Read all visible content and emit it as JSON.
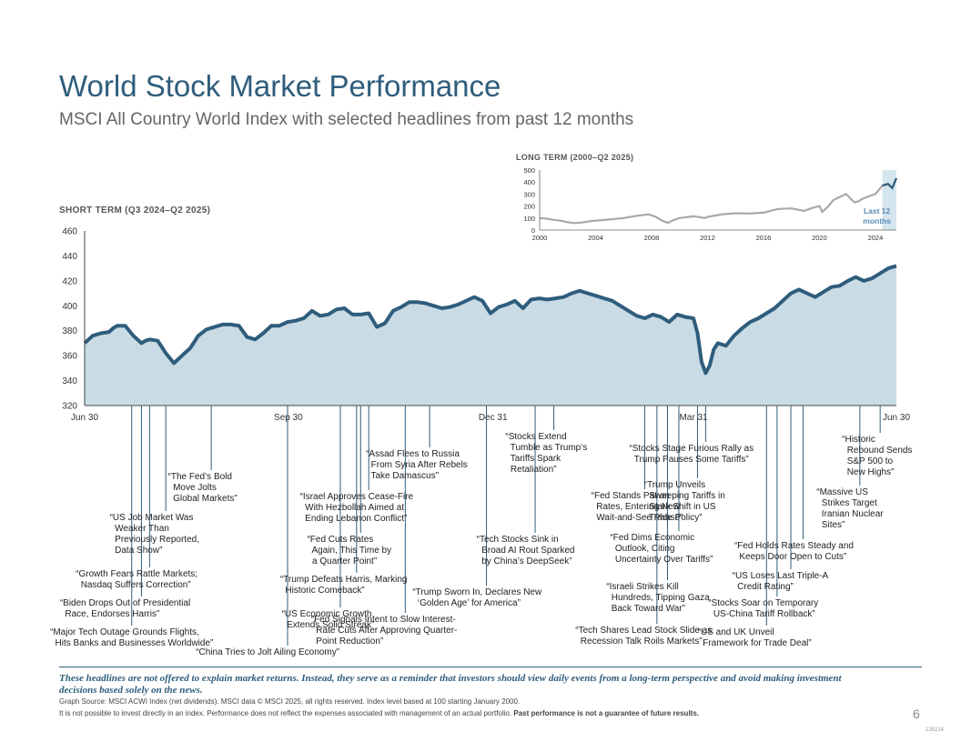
{
  "header": {
    "title": "World Stock Market Performance",
    "subtitle": "MSCI All Country World Index with selected headlines from past 12 months"
  },
  "labels": {
    "short_term": "SHORT TERM (Q3 2024–Q2 2025)",
    "long_term": "LONG TERM (2000–Q2 2025)"
  },
  "colors": {
    "line": "#2f5d7c",
    "fill": "#c9dbe5",
    "title": "#2f5d7c",
    "highlight": "#d6e6ef"
  },
  "chart_data": [
    {
      "type": "area",
      "name": "short-term",
      "title": "SHORT TERM (Q3 2024–Q2 2025)",
      "xlabel": "",
      "ylabel": "",
      "ylim": [
        320,
        460
      ],
      "yticks": [
        320,
        340,
        360,
        380,
        400,
        420,
        440,
        460
      ],
      "xlim": [
        0,
        100
      ],
      "xtick_labels": [
        {
          "x": 0,
          "label": "Jun 30"
        },
        {
          "x": 25.1,
          "label": "Sep 30"
        },
        {
          "x": 50.3,
          "label": "Dec 31"
        },
        {
          "x": 75.0,
          "label": "Mar 31"
        },
        {
          "x": 100,
          "label": "Jun 30"
        }
      ],
      "series": [
        {
          "name": "MSCI ACWI",
          "x": [
            0,
            1,
            2,
            3,
            3.5,
            4,
            5,
            6,
            7,
            7.5,
            8,
            9,
            10,
            11,
            12,
            13,
            14,
            15,
            16,
            17,
            18,
            19,
            20,
            21,
            22,
            23,
            24,
            25,
            26,
            27,
            28,
            29,
            30,
            31,
            32,
            33,
            34,
            35,
            36,
            37,
            38,
            39,
            40,
            41,
            42,
            43,
            44,
            45,
            46,
            47,
            48,
            49,
            50,
            51,
            52,
            53,
            54,
            55,
            56,
            57,
            58,
            59,
            60,
            61,
            62,
            63,
            64,
            65,
            66,
            67,
            68,
            69,
            70,
            71,
            72,
            73,
            74,
            75,
            75.5,
            76,
            76.5,
            77,
            77.5,
            78,
            79,
            80,
            81,
            82,
            83,
            84,
            85,
            86,
            87,
            88,
            89,
            90,
            91,
            92,
            93,
            94,
            95,
            96,
            97,
            98,
            99,
            100
          ],
          "values": [
            370,
            376,
            378,
            379,
            382,
            384,
            384,
            376,
            370,
            372,
            373,
            372,
            362,
            354,
            360,
            366,
            376,
            381,
            383,
            385,
            385,
            384,
            375,
            373,
            378,
            384,
            384,
            387,
            388,
            390,
            396,
            392,
            393,
            397,
            398,
            393,
            393,
            394,
            383,
            386,
            396,
            399,
            403,
            403,
            402,
            400,
            398,
            399,
            401,
            404,
            407,
            404,
            394,
            399,
            401,
            404,
            398,
            405,
            406,
            405,
            406,
            407,
            410,
            412,
            410,
            408,
            406,
            404,
            400,
            396,
            392,
            390,
            393,
            391,
            387,
            393,
            391,
            390,
            378,
            355,
            346,
            352,
            365,
            370,
            368,
            376,
            382,
            387,
            390,
            394,
            398,
            404,
            410,
            413,
            410,
            407,
            411,
            415,
            416,
            420,
            423,
            420,
            422,
            426,
            430,
            432
          ]
        }
      ]
    },
    {
      "type": "line",
      "name": "long-term",
      "title": "LONG TERM (2000–Q2 2025)",
      "xlabel": "",
      "ylabel": "",
      "ylim": [
        0,
        500
      ],
      "yticks": [
        0,
        100,
        200,
        300,
        400,
        500
      ],
      "xlim": [
        2000,
        2025.5
      ],
      "xticks": [
        2000,
        2004,
        2008,
        2012,
        2016,
        2020,
        2024
      ],
      "highlight": {
        "from": 2024.5,
        "to": 2025.5,
        "label": "Last 12 months"
      },
      "series": [
        {
          "name": "MSCI ACWI",
          "x": [
            2000,
            2000.5,
            2001,
            2001.5,
            2002,
            2002.5,
            2003,
            2003.5,
            2004,
            2005,
            2006,
            2007,
            2007.8,
            2008.3,
            2008.8,
            2009.2,
            2009.5,
            2010,
            2011,
            2011.8,
            2012,
            2013,
            2014,
            2015,
            2016,
            2017,
            2018,
            2018.9,
            2019.5,
            2020,
            2020.2,
            2020.6,
            2021,
            2021.9,
            2022.5,
            2022.8,
            2023,
            2023.5,
            2024,
            2024.5,
            2024.9,
            2025.2,
            2025.5
          ],
          "values": [
            100,
            95,
            85,
            78,
            65,
            58,
            62,
            72,
            78,
            88,
            100,
            120,
            130,
            110,
            75,
            60,
            80,
            100,
            115,
            100,
            110,
            130,
            140,
            138,
            145,
            175,
            180,
            160,
            185,
            200,
            150,
            195,
            250,
            300,
            230,
            240,
            255,
            280,
            300,
            370,
            385,
            350,
            432
          ]
        }
      ]
    }
  ],
  "headlines": [
    {
      "x": 5.8,
      "row": "r1",
      "text": "“Major Tech Outage Grounds Flights,\n  Hits Banks and Businesses Worldwide”"
    },
    {
      "x": 7.0,
      "row": "r3",
      "text": "“Biden Drops Out of Presidential\n  Race, Endorses Harris”"
    },
    {
      "x": 8.0,
      "row": "r5",
      "text": "“Growth Fears Rattle Markets;\n  Nasdaq Suffers Correction”"
    },
    {
      "x": 10.0,
      "row": "r7",
      "text": "“US Job Market Was\n  Weaker Than\n  Previously Reported,\n  Data Show”"
    },
    {
      "x": 15.6,
      "row": "r8",
      "text": "“The Fed’s Bold\n  Move Jolts\n  Global Markets”"
    },
    {
      "x": 25.0,
      "row": "r0",
      "text": "“China Tries to Jolt Ailing Economy”"
    },
    {
      "x": 31.5,
      "row": "r2",
      "text": "“US Economic Growth\n  Extends Solid Streak”"
    },
    {
      "x": 33.5,
      "row": "r4",
      "text": "“Trump Defeats Harris, Marking\n  Historic Comeback”"
    },
    {
      "x": 34.0,
      "row": "r6",
      "text": "“Fed Cuts Rates\n  Again, This Time by\n  a Quarter Point”"
    },
    {
      "x": 35.0,
      "row": "r9",
      "text": "“Israel Approves Cease-Fire\n  With Hezbollah Aimed at\n  Ending Lebanon Conflict”"
    },
    {
      "x": 39.5,
      "row": "r1b",
      "text": "“Fed Signals Intent to Slow Interest-\n  Rate Cuts After Approving Quarter-\n  Point Reduction”"
    },
    {
      "x": 42.5,
      "row": "r10",
      "text": "“Assad Flees to Russia\n  From Syria After Rebels\n  Take Damascus”"
    },
    {
      "x": 49.5,
      "row": "r4b",
      "text": "“Trump Sworn In, Declares New\n  ‘Golden Age’ for America”"
    },
    {
      "x": 55.5,
      "row": "r6b",
      "text": "“Tech Stocks Sink in\n  Broad AI Rout Sparked\n  by China’s DeepSeek”"
    },
    {
      "x": 57.8,
      "row": "r11",
      "text": "“Stocks Extend\n  Tumble as Trump’s\n  Tariffs Spark\n  Retaliation”"
    },
    {
      "x": 69.0,
      "row": "r9b",
      "text": "“Fed Stands Pat on\n  Rates, Entering New\n  Wait-and-See Phase”"
    },
    {
      "x": 70.5,
      "row": "r2b",
      "text": "“Tech Shares Lead Stock Slide as\n  Recession Talk Roils Markets”"
    },
    {
      "x": 71.8,
      "row": "r4c",
      "text": "“Israeli Strikes Kill\n  Hundreds, Tipping Gaza\n  Back Toward War”"
    },
    {
      "x": 73.2,
      "row": "r7b",
      "text": "“Fed Dims Economic\n  Outlook, Citing\n  Uncertainty Over Tariffs”"
    },
    {
      "x": 75.5,
      "row": "r9c",
      "text": "“Trump Unveils\n  Sweeping Tariffs in\n  Stark Shift in US\n  Trade Policy”"
    },
    {
      "x": 76.5,
      "row": "r10b",
      "text": "“Stocks Stage Furious Rally as\n  Trump Pauses Some Tariffs”"
    },
    {
      "x": 84.0,
      "row": "r1c",
      "text": "“US and UK Unveil\n  Framework for Trade Deal”"
    },
    {
      "x": 85.3,
      "row": "r3b",
      "text": "“Stocks Soar on Temporary\n  US-China Tariff Rollback”"
    },
    {
      "x": 87.0,
      "row": "r5b",
      "text": "“US Loses Last Triple-A\n  Credit Rating”"
    },
    {
      "x": 88.5,
      "row": "r7c",
      "text": "“Fed Holds Rates Steady and\n  Keeps Door Open to Cuts”"
    },
    {
      "x": 95.5,
      "row": "r9d",
      "text": "“Massive US\n  Strikes Target\n  Iranian Nuclear\n  Sites”"
    },
    {
      "x": 98.0,
      "row": "r11b",
      "text": "“Historic\n  Rebound Sends\n  S&P 500 to\n  New Highs”"
    }
  ],
  "footer": {
    "disclaimer": "These headlines are not offered to explain market returns. Instead, they serve as a reminder that investors should view daily events from a long-term perspective and avoid making investment decisions based solely on the news.",
    "source": "Graph Source: MSCI ACWI Index (net dividends). MSCI data © MSCI 2025, all rights reserved. Index level based at 100 starting January 2000.",
    "note_plain": "It is not possible to invest directly in an index. Performance does not reflect the expenses associated with management of an actual portfolio. ",
    "note_bold": "Past performance is not a guarantee of future results.",
    "page_number": "6",
    "doc_code": "135214"
  }
}
